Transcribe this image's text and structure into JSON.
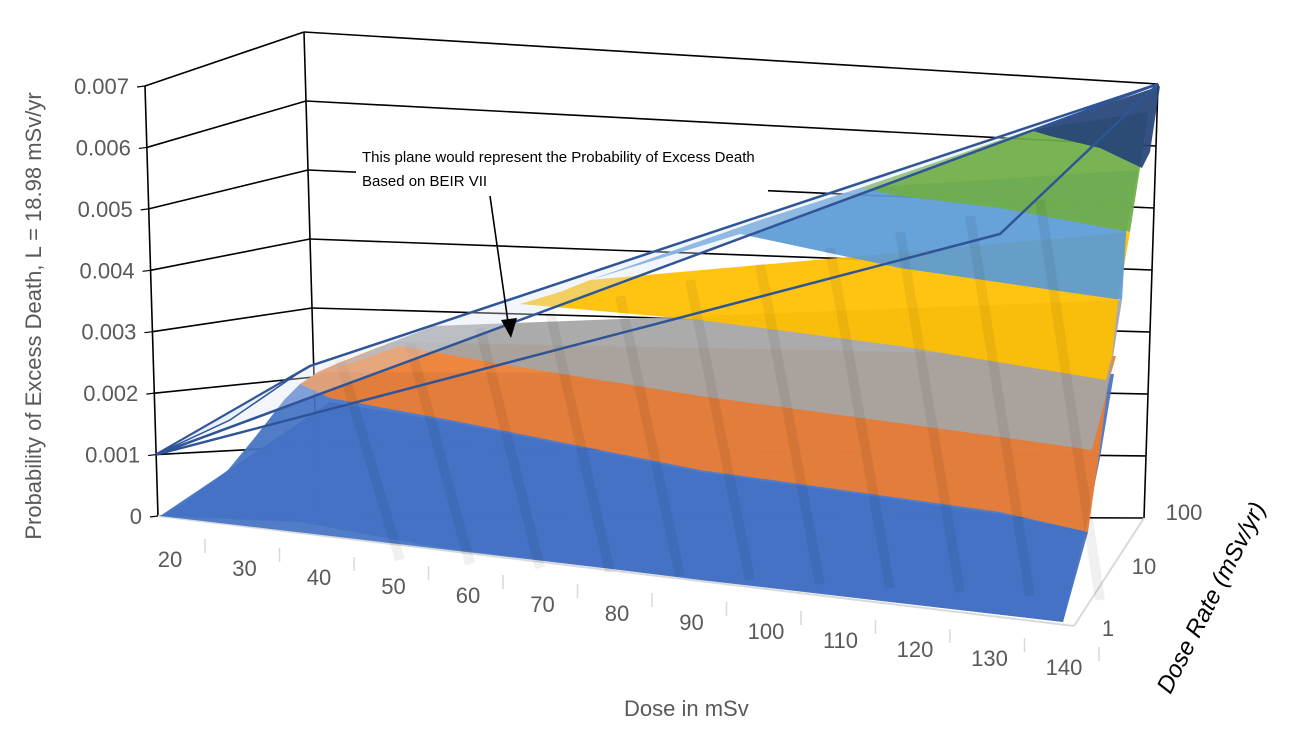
{
  "chart_data": {
    "type": "surface-3d",
    "title": "",
    "ylabel": "Probability of Excess Death, L = 18.98 mSv/yr",
    "xlabel": "Dose in mSv",
    "zlabel": "Dose Rate (mSv/yr)",
    "x_ticks": [
      "20",
      "30",
      "40",
      "50",
      "60",
      "70",
      "80",
      "90",
      "100",
      "110",
      "120",
      "130",
      "140"
    ],
    "y_ticks": [
      "0",
      "0.001",
      "0.002",
      "0.003",
      "0.004",
      "0.005",
      "0.006",
      "0.007"
    ],
    "z_ticks": [
      "1",
      "10",
      "100"
    ],
    "ylim": [
      0,
      0.007
    ],
    "grid": true,
    "surface_bands": [
      {
        "range": "0-0.001",
        "color": "#4472C4"
      },
      {
        "range": "0.001-0.002",
        "color": "#ED7D31"
      },
      {
        "range": "0.002-0.003",
        "color": "#A5A5A5"
      },
      {
        "range": "0.003-0.004",
        "color": "#FFC000"
      },
      {
        "range": "0.004-0.005",
        "color": "#5B9BD5"
      },
      {
        "range": "0.005-0.006",
        "color": "#70AD47"
      },
      {
        "range": "0.006-0.007",
        "color": "#264478"
      }
    ],
    "beir_plane": {
      "y_at_min_dose": 0.001,
      "y_at_max_dose": 0.007
    },
    "annotation": "This plane would represent the Probability of Excess Death Based on BEIR VII"
  }
}
